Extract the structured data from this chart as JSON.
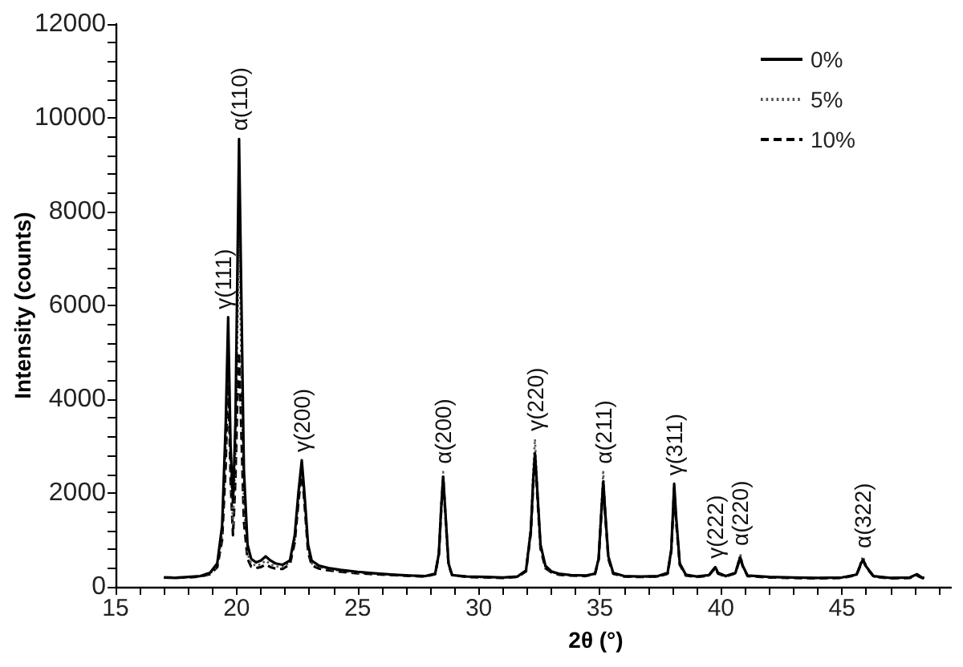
{
  "chart_data": {
    "type": "line",
    "xlabel": "2θ (°)",
    "ylabel": "Intensity (counts)",
    "xlim": [
      15,
      49.5
    ],
    "ylim": [
      0,
      12000
    ],
    "xticks": [
      15,
      {
        "value": 16,
        "label": null
      },
      {
        "value": 17,
        "label": null
      },
      {
        "value": 18,
        "label": null
      },
      {
        "value": 19,
        "label": null
      },
      20,
      {
        "value": 21,
        "label": null
      },
      {
        "value": 22,
        "label": null
      },
      {
        "value": 23,
        "label": null
      },
      {
        "value": 24,
        "label": null
      },
      25,
      {
        "value": 26,
        "label": null
      },
      {
        "value": 27,
        "label": null
      },
      {
        "value": 28,
        "label": null
      },
      {
        "value": 29,
        "label": null
      },
      30,
      {
        "value": 31,
        "label": null
      },
      {
        "value": 32,
        "label": null
      },
      {
        "value": 33,
        "label": null
      },
      {
        "value": 34,
        "label": null
      },
      35,
      {
        "value": 36,
        "label": null
      },
      {
        "value": 37,
        "label": null
      },
      {
        "value": 38,
        "label": null
      },
      {
        "value": 39,
        "label": null
      },
      40,
      {
        "value": 41,
        "label": null
      },
      {
        "value": 42,
        "label": null
      },
      {
        "value": 43,
        "label": null
      },
      {
        "value": 44,
        "label": null
      },
      45,
      {
        "value": 46,
        "label": null
      },
      {
        "value": 47,
        "label": null
      },
      {
        "value": 48,
        "label": null
      },
      {
        "value": 49,
        "label": null
      }
    ],
    "yticks": [
      0,
      {
        "value": 400,
        "label": null
      },
      {
        "value": 800,
        "label": null
      },
      {
        "value": 1200,
        "label": null
      },
      {
        "value": 1600,
        "label": null
      },
      2000,
      {
        "value": 2400,
        "label": null
      },
      {
        "value": 2800,
        "label": null
      },
      {
        "value": 3200,
        "label": null
      },
      {
        "value": 3600,
        "label": null
      },
      4000,
      {
        "value": 4400,
        "label": null
      },
      {
        "value": 4800,
        "label": null
      },
      {
        "value": 5200,
        "label": null
      },
      {
        "value": 5600,
        "label": null
      },
      6000,
      {
        "value": 6400,
        "label": null
      },
      {
        "value": 6800,
        "label": null
      },
      {
        "value": 7200,
        "label": null
      },
      {
        "value": 7600,
        "label": null
      },
      8000,
      {
        "value": 8400,
        "label": null
      },
      {
        "value": 8800,
        "label": null
      },
      {
        "value": 9200,
        "label": null
      },
      {
        "value": 9600,
        "label": null
      },
      10000,
      {
        "value": 10400,
        "label": null
      },
      {
        "value": 10800,
        "label": null
      },
      {
        "value": 11200,
        "label": null
      },
      {
        "value": 11600,
        "label": null
      },
      12000
    ],
    "grid": false,
    "legend": "top right",
    "marker": "none",
    "x": [
      17.0,
      17.5,
      18.0,
      18.5,
      18.9,
      19.2,
      19.4,
      19.55,
      19.65,
      19.75,
      19.85,
      19.95,
      20.05,
      20.1,
      20.2,
      20.3,
      20.45,
      20.6,
      20.8,
      21.0,
      21.2,
      21.4,
      21.6,
      21.9,
      22.2,
      22.4,
      22.55,
      22.69,
      22.8,
      22.95,
      23.1,
      23.4,
      23.8,
      24.3,
      25.0,
      25.7,
      26.5,
      27.2,
      27.8,
      28.2,
      28.35,
      28.45,
      28.53,
      28.62,
      28.75,
      28.9,
      29.5,
      30.3,
      31.0,
      31.6,
      31.95,
      32.15,
      32.25,
      32.32,
      32.4,
      32.55,
      32.75,
      33.0,
      33.3,
      33.8,
      34.4,
      34.8,
      34.95,
      35.05,
      35.14,
      35.22,
      35.35,
      35.55,
      36.0,
      36.7,
      37.4,
      37.8,
      37.95,
      38.02,
      38.07,
      38.15,
      38.3,
      38.55,
      39.0,
      39.5,
      39.7,
      39.77,
      39.88,
      40.2,
      40.6,
      40.75,
      40.8,
      40.9,
      41.1,
      42.0,
      43.0,
      44.0,
      45.0,
      45.6,
      45.8,
      45.87,
      46.0,
      46.3,
      47.0,
      47.8,
      48.1,
      48.3,
      48.4
    ],
    "series": [
      {
        "name": "0%",
        "color": "#000000",
        "line_style": "solid",
        "values": [
          200,
          190,
          210,
          230,
          300,
          500,
          1300,
          3500,
          5750,
          3000,
          1800,
          3500,
          7500,
          9550,
          6000,
          2500,
          900,
          600,
          520,
          560,
          650,
          560,
          500,
          470,
          560,
          1100,
          2000,
          2700,
          2000,
          900,
          560,
          450,
          400,
          360,
          320,
          290,
          260,
          240,
          230,
          280,
          700,
          1700,
          2350,
          1600,
          500,
          250,
          220,
          210,
          200,
          220,
          350,
          1200,
          2300,
          2850,
          2200,
          900,
          450,
          330,
          280,
          250,
          240,
          280,
          600,
          1500,
          2250,
          1600,
          650,
          300,
          230,
          220,
          230,
          300,
          800,
          1600,
          2200,
          1500,
          500,
          260,
          220,
          250,
          380,
          420,
          300,
          230,
          300,
          560,
          630,
          450,
          240,
          210,
          200,
          190,
          200,
          260,
          520,
          580,
          430,
          230,
          190,
          200,
          270,
          200,
          190
        ]
      },
      {
        "name": "5%",
        "color": "#555555",
        "line_style": "dotted",
        "values": [
          190,
          200,
          200,
          220,
          280,
          450,
          1100,
          3000,
          5200,
          2600,
          1300,
          2800,
          6000,
          7600,
          4500,
          1800,
          700,
          500,
          450,
          480,
          560,
          480,
          440,
          420,
          520,
          1000,
          1900,
          2600,
          1900,
          800,
          500,
          420,
          380,
          340,
          300,
          280,
          250,
          240,
          230,
          280,
          750,
          1800,
          2450,
          1600,
          480,
          250,
          220,
          200,
          200,
          220,
          360,
          1300,
          2500,
          3150,
          2300,
          850,
          420,
          320,
          270,
          250,
          240,
          280,
          620,
          1600,
          2450,
          1650,
          620,
          290,
          220,
          210,
          220,
          290,
          780,
          1550,
          2150,
          1450,
          480,
          250,
          210,
          240,
          370,
          430,
          290,
          220,
          300,
          600,
          700,
          460,
          240,
          200,
          200,
          190,
          200,
          250,
          560,
          650,
          440,
          220,
          190,
          200,
          250,
          200,
          190
        ]
      },
      {
        "name": "10%",
        "color": "#000000",
        "line_style": "dashed",
        "values": [
          200,
          200,
          200,
          220,
          270,
          420,
          1000,
          2600,
          4600,
          2300,
          1100,
          2300,
          4400,
          5000,
          3200,
          1400,
          600,
          430,
          400,
          420,
          480,
          420,
          390,
          380,
          480,
          950,
          1800,
          2500,
          1800,
          750,
          460,
          390,
          350,
          320,
          290,
          270,
          250,
          230,
          220,
          270,
          680,
          1650,
          2300,
          1550,
          470,
          250,
          210,
          200,
          190,
          210,
          330,
          1150,
          2200,
          2750,
          2100,
          820,
          400,
          310,
          260,
          240,
          230,
          270,
          580,
          1450,
          2200,
          1550,
          600,
          280,
          220,
          210,
          220,
          280,
          760,
          1500,
          2100,
          1400,
          470,
          240,
          210,
          240,
          360,
          400,
          280,
          220,
          290,
          540,
          610,
          440,
          230,
          200,
          190,
          180,
          190,
          250,
          500,
          560,
          420,
          220,
          180,
          190,
          240,
          190,
          180
        ]
      }
    ],
    "annotations": [
      {
        "text": "γ(111)",
        "x": 19.65,
        "y": 5750
      },
      {
        "text": "α(110)",
        "x": 20.1,
        "y": 9550
      },
      {
        "text": "γ(200)",
        "x": 22.69,
        "y": 2700
      },
      {
        "text": "α(200)",
        "x": 28.53,
        "y": 2450
      },
      {
        "text": "γ(220)",
        "x": 32.32,
        "y": 3150
      },
      {
        "text": "α(211)",
        "x": 35.14,
        "y": 2450
      },
      {
        "text": "γ(311)",
        "x": 38.07,
        "y": 2200
      },
      {
        "text": "γ(222)",
        "x": 39.77,
        "y": 430
      },
      {
        "text": "α(220)",
        "x": 40.8,
        "y": 700
      },
      {
        "text": "α(322)",
        "x": 45.87,
        "y": 650
      }
    ]
  }
}
